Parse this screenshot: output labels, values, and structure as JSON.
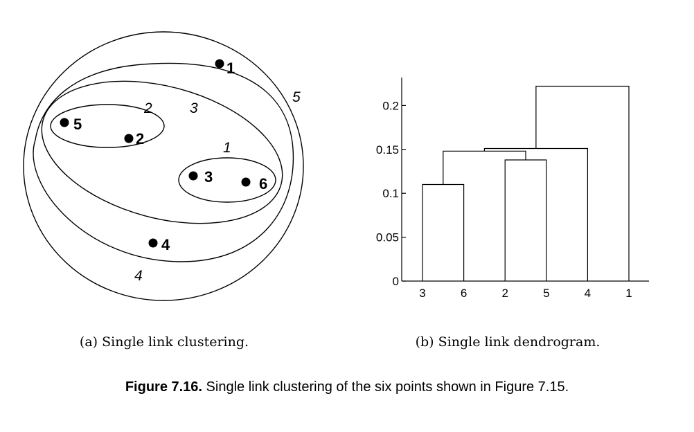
{
  "clustering": {
    "points": [
      {
        "id": "1",
        "label": "1"
      },
      {
        "id": "2",
        "label": "2"
      },
      {
        "id": "3",
        "label": "3"
      },
      {
        "id": "4",
        "label": "4"
      },
      {
        "id": "5",
        "label": "5"
      },
      {
        "id": "6",
        "label": "6"
      }
    ],
    "cluster_labels": [
      "1",
      "2",
      "3",
      "4",
      "5"
    ],
    "subcaption": "(a) Single link clustering."
  },
  "dendrogram": {
    "leaf_order": [
      "3",
      "6",
      "2",
      "5",
      "4",
      "1"
    ],
    "y_ticks": [
      "0",
      "0.05",
      "0.1",
      "0.15",
      "0.2"
    ],
    "merges": [
      {
        "left": "3",
        "right": "6",
        "height": 0.11
      },
      {
        "left": "2",
        "right": "5",
        "height": 0.138
      },
      {
        "left": "{3,6}",
        "right": "{2,5}",
        "height": 0.148
      },
      {
        "left": "{3,6,2,5}",
        "right": "4",
        "height": 0.151
      },
      {
        "left": "{3,6,2,5,4}",
        "right": "1",
        "height": 0.222
      }
    ],
    "subcaption": "(b) Single link dendrogram."
  },
  "caption": {
    "label": "Figure 7.16.",
    "text": "Single link clustering of the six points shown in Figure 7.15."
  }
}
